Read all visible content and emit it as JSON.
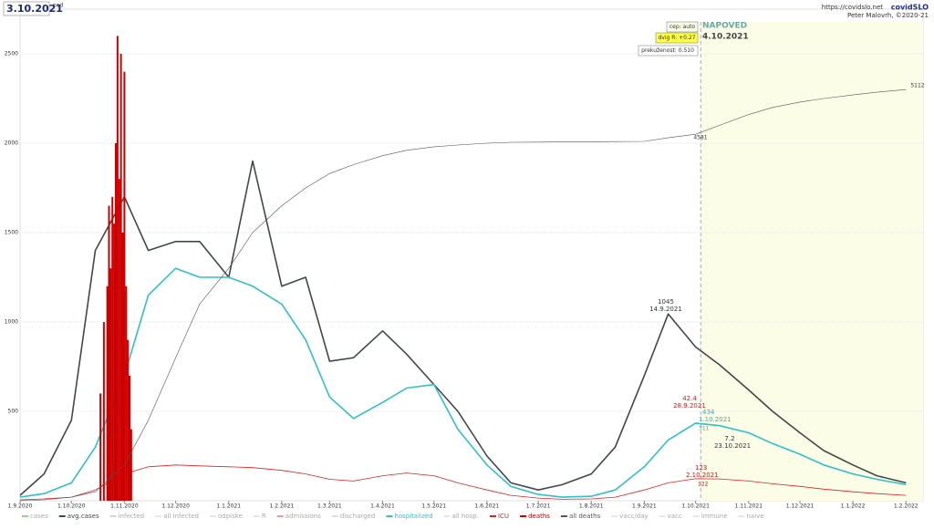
{
  "chart_data": {
    "type": "line",
    "title": "3.10.2021",
    "title_note": "ned",
    "site": "https://covidslo.net",
    "brand": "covidSLO",
    "author": "Peter Malovrh, ©2020-21",
    "forecast": {
      "label": "NAPOVED",
      "date": "4.10.2021"
    },
    "controls": [
      "cep: auto",
      "dvig R: +0.27",
      "prekuženost: 0.510"
    ],
    "annotations": [
      "1045",
      "14.9.2021",
      "42.4",
      "28.9.2021",
      "434",
      "1.10.2021",
      "311",
      "123",
      "2.10.2021",
      "122",
      "7.2",
      "23.10.2021",
      "4581",
      "5112"
    ],
    "xlim": [
      "2020-09-01",
      "2022-02-11"
    ],
    "xticks": [
      {
        "value": "2020-09-01",
        "label": "1.9.2020"
      },
      {
        "value": "2020-10-01",
        "label": "1.10.2020"
      },
      {
        "value": "2020-11-01",
        "label": "1.11.2020"
      },
      {
        "value": "2020-12-01",
        "label": "1.12.2020"
      },
      {
        "value": "2021-01-01",
        "label": "1.1.2021"
      },
      {
        "value": "2021-02-01",
        "label": "1.2.2021"
      },
      {
        "value": "2021-03-01",
        "label": "1.3.2021"
      },
      {
        "value": "2021-04-01",
        "label": "1.4.2021"
      },
      {
        "value": "2021-05-01",
        "label": "1.5.2021"
      },
      {
        "value": "2021-06-01",
        "label": "1.6.2021"
      },
      {
        "value": "2021-07-01",
        "label": "1.7.2021"
      },
      {
        "value": "2021-08-01",
        "label": "1.8.2021"
      },
      {
        "value": "2021-09-01",
        "label": "1.9.2021"
      },
      {
        "value": "2021-10-01",
        "label": "1.10.2021"
      },
      {
        "value": "2021-11-01",
        "label": "1.11.2021"
      },
      {
        "value": "2021-12-01",
        "label": "1.12.2021"
      },
      {
        "value": "2022-01-01",
        "label": "1.1.2022"
      },
      {
        "value": "2022-02-01",
        "label": "1.2.2022"
      }
    ],
    "ylim": [
      0,
      2750
    ],
    "yticks": [
      500,
      1000,
      1500,
      2000,
      2500
    ],
    "grid": true,
    "x": [
      "2020-09-01",
      "2020-09-15",
      "2020-10-01",
      "2020-10-15",
      "2020-11-01",
      "2020-11-15",
      "2020-12-01",
      "2020-12-15",
      "2021-01-01",
      "2021-01-15",
      "2021-02-01",
      "2021-02-15",
      "2021-03-01",
      "2021-03-15",
      "2021-04-01",
      "2021-04-15",
      "2021-05-01",
      "2021-05-15",
      "2021-06-01",
      "2021-06-15",
      "2021-07-01",
      "2021-07-15",
      "2021-08-01",
      "2021-08-15",
      "2021-09-01",
      "2021-09-15",
      "2021-10-01",
      "2021-10-15",
      "2021-11-01",
      "2021-11-15",
      "2021-12-01",
      "2021-12-15",
      "2022-01-01",
      "2022-01-15",
      "2022-02-01"
    ],
    "series": [
      {
        "name": "cases",
        "color": "#22aa22"
      },
      {
        "name": "avg.cases",
        "color": "#404848",
        "width": 1.6,
        "values": [
          30,
          150,
          450,
          1400,
          1700,
          1400,
          1450,
          1450,
          1250,
          1900,
          1200,
          1250,
          780,
          800,
          950,
          820,
          650,
          500,
          250,
          100,
          60,
          90,
          150,
          300,
          700,
          1045,
          860,
          760,
          620,
          500,
          380,
          280,
          200,
          140,
          100
        ]
      },
      {
        "name": "infected",
        "color": "#aaaaaa"
      },
      {
        "name": "all infected",
        "color": "#cccccc"
      },
      {
        "name": "odpiske",
        "color": "#cccccc"
      },
      {
        "name": "R",
        "color": "#cccccc"
      },
      {
        "name": "admissions",
        "color": "#e03030"
      },
      {
        "name": "discharged",
        "color": "#bbbbbb"
      },
      {
        "name": "hospitalized",
        "color": "#30c0c8",
        "width": 1.6,
        "values": [
          20,
          40,
          100,
          300,
          700,
          1150,
          1300,
          1250,
          1250,
          1200,
          1100,
          900,
          580,
          460,
          550,
          630,
          650,
          400,
          200,
          80,
          35,
          20,
          25,
          60,
          190,
          340,
          434,
          420,
          380,
          320,
          260,
          200,
          150,
          120,
          90
        ]
      },
      {
        "name": "all hosp.",
        "color": "#cccccc"
      },
      {
        "name": "ICU",
        "color": "#e02020",
        "width": 0.8,
        "values": [
          5,
          10,
          20,
          60,
          150,
          190,
          200,
          195,
          190,
          185,
          170,
          150,
          120,
          110,
          140,
          155,
          140,
          100,
          60,
          30,
          15,
          8,
          10,
          20,
          60,
          100,
          123,
          122,
          110,
          95,
          80,
          65,
          50,
          40,
          30
        ]
      },
      {
        "name": "deaths",
        "color": "#cc0000",
        "bars": true,
        "x": [
          "2020-10-18",
          "2020-10-20",
          "2020-10-22",
          "2020-10-23",
          "2020-10-24",
          "2020-10-25",
          "2020-10-26",
          "2020-10-27",
          "2020-10-28",
          "2020-10-29",
          "2020-10-30",
          "2020-10-31",
          "2020-11-01",
          "2020-11-02",
          "2020-11-03",
          "2020-11-04",
          "2020-11-05"
        ],
        "values": [
          600,
          1000,
          1200,
          1650,
          1300,
          1700,
          1550,
          2000,
          2600,
          1800,
          2500,
          1500,
          2400,
          1200,
          900,
          700,
          400
        ]
      },
      {
        "name": "all deaths",
        "color": "#555555",
        "width": 0.6,
        "values": [
          0,
          5,
          20,
          50,
          200,
          450,
          800,
          1100,
          1300,
          1500,
          1650,
          1750,
          1830,
          1880,
          1930,
          1960,
          1980,
          1990,
          2000,
          2005,
          2006,
          2007,
          2008,
          2009,
          2010,
          2030,
          2050,
          2100,
          2160,
          2200,
          2230,
          2250,
          2270,
          2285,
          2300
        ]
      },
      {
        "name": "vacc/day",
        "color": "#cccccc"
      },
      {
        "name": "vacc",
        "color": "#cccccc"
      },
      {
        "name": "immune",
        "color": "#cccccc"
      },
      {
        "name": "naive",
        "color": "#cccccc"
      }
    ]
  }
}
